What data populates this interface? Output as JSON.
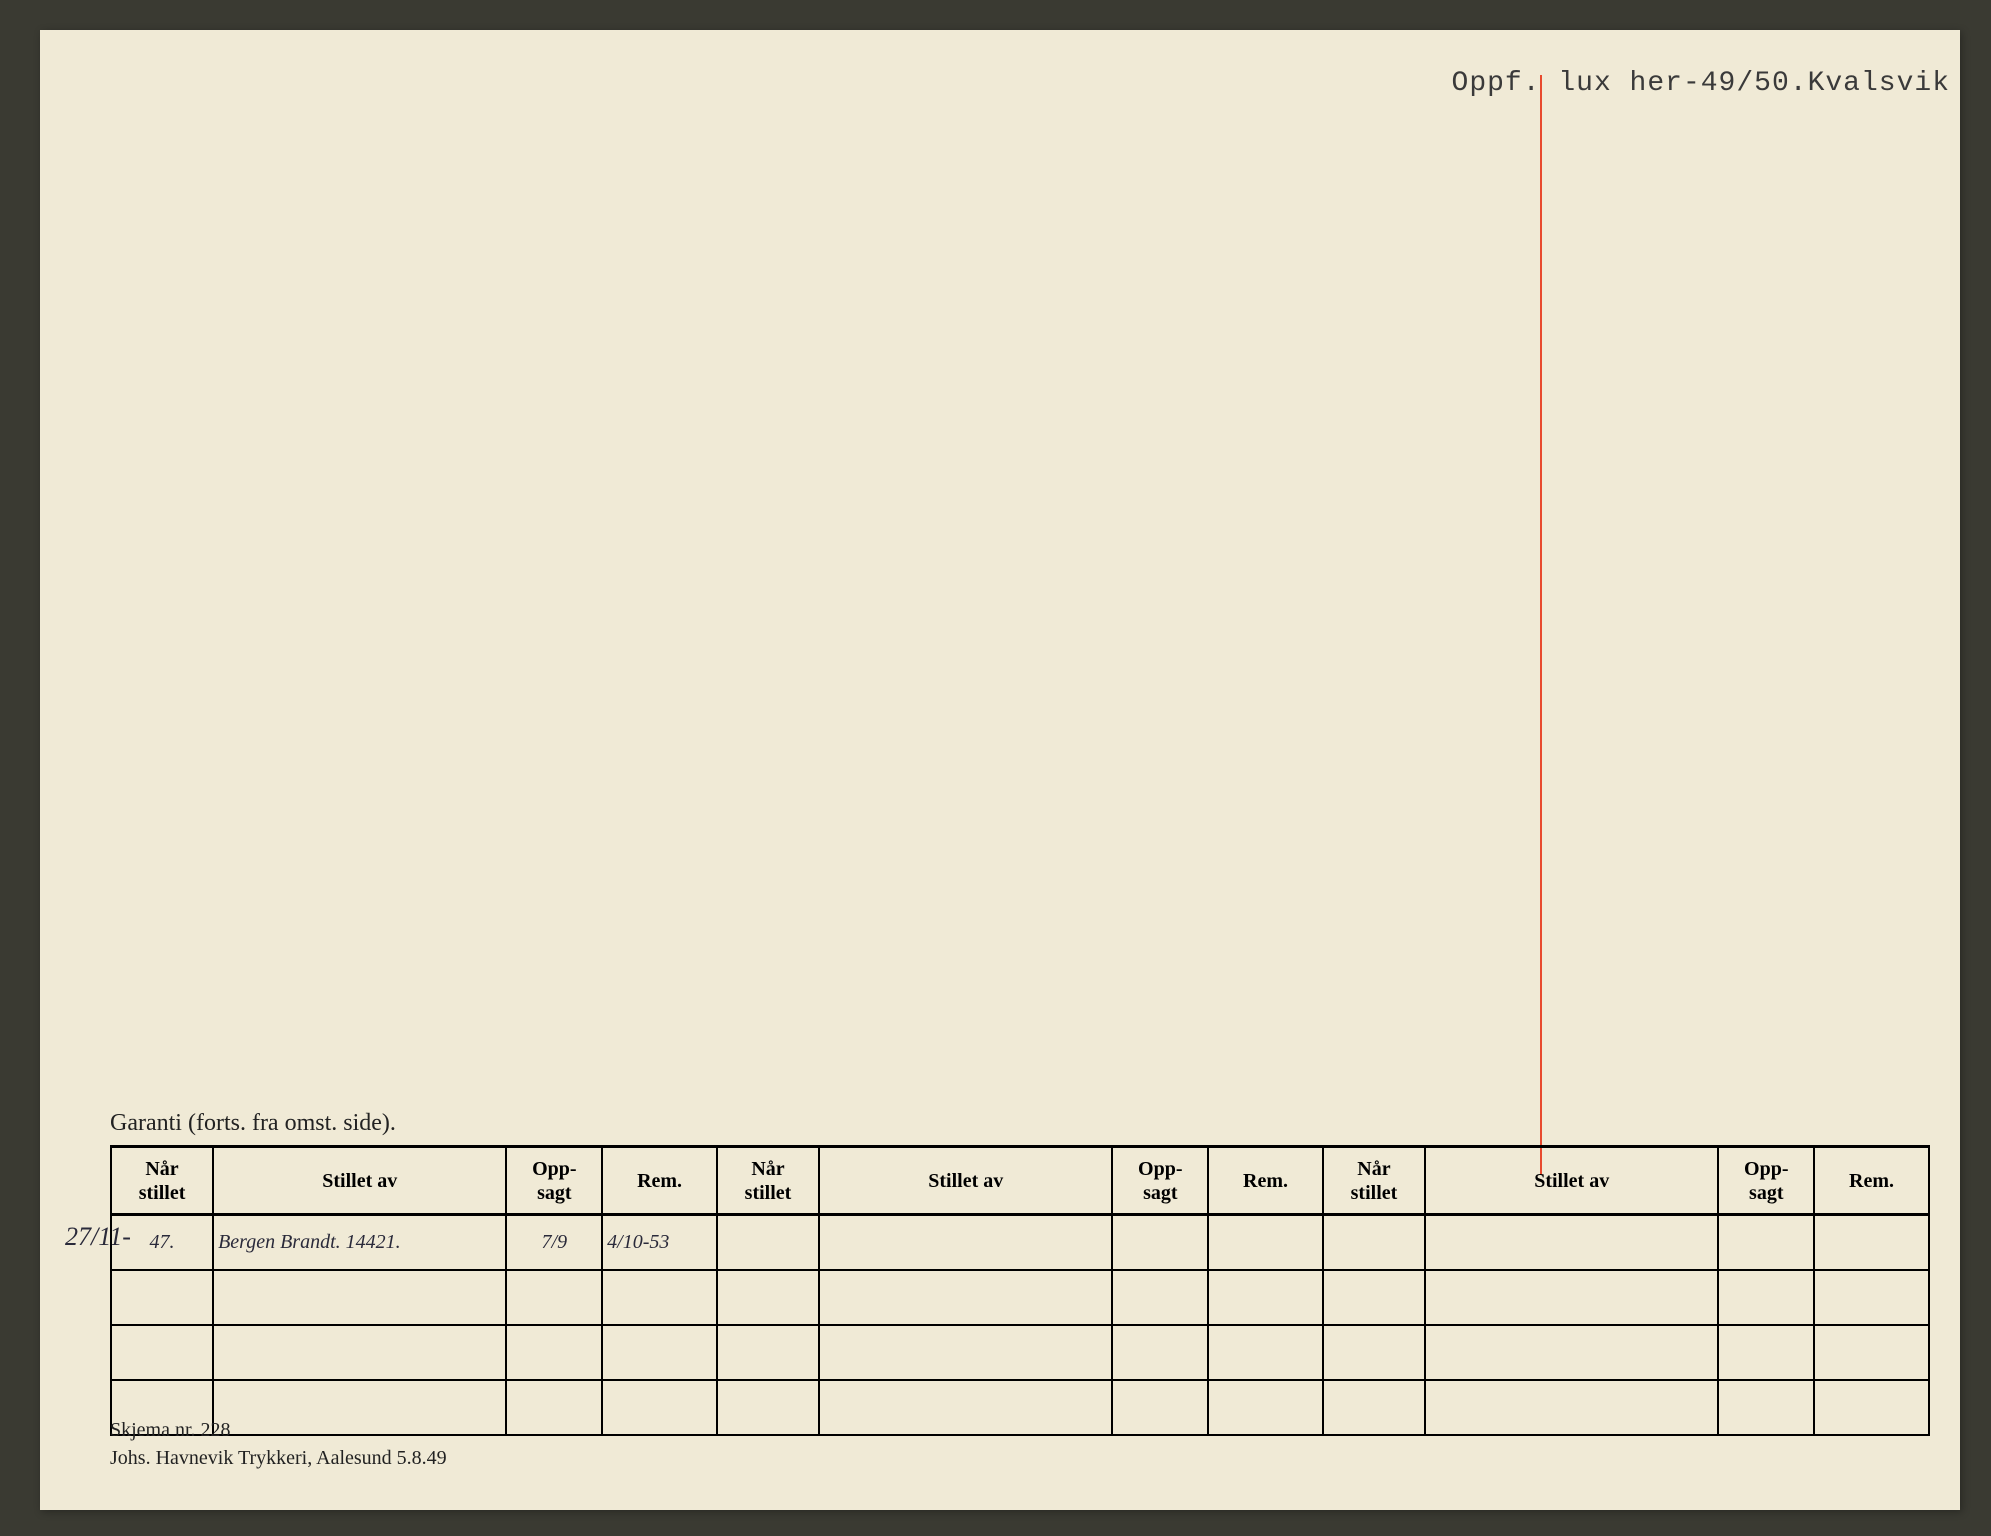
{
  "background_color": "#3a3a32",
  "card_color": "#f0ead6",
  "red_line_color": "#e84a2e",
  "top_note": "Oppf. lux her-49/50.Kvalsvik",
  "section_label": "Garanti (forts. fra omst. side).",
  "table": {
    "headers": {
      "nar_stillet": "Når\nstillet",
      "stillet_av": "Stillet av",
      "oppsagt": "Opp-\nsagt",
      "rem": "Rem."
    },
    "column_repeat": 3,
    "row_count": 4,
    "rows": [
      {
        "nar_stillet_prefix": "27/11-",
        "nar_stillet": "47.",
        "stillet_av": "Bergen Brandt. 14421.",
        "oppsagt": "7/9",
        "rem": "4/10-53"
      }
    ]
  },
  "footer": {
    "line1": "Skjema nr. 228",
    "line2": "Johs. Havnevik Trykkeri, Aalesund 5.8.49"
  }
}
